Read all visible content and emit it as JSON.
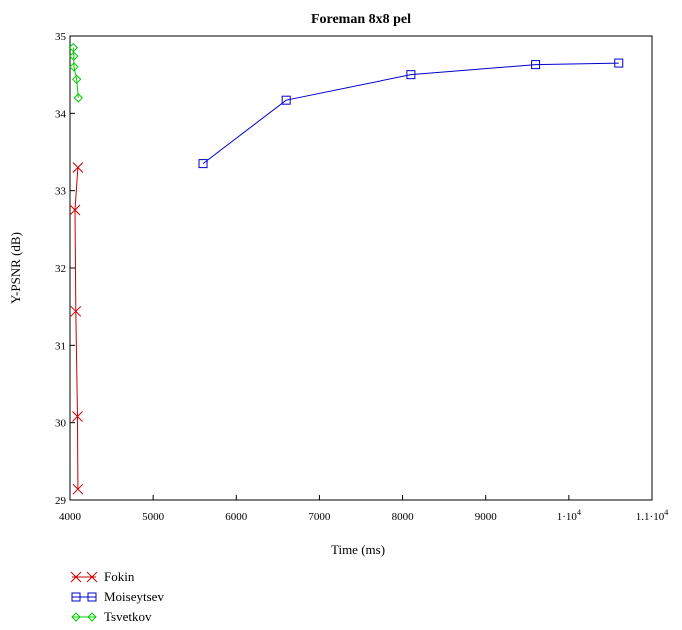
{
  "chart_data": {
    "type": "line",
    "title": "Foreman 8x8 pel",
    "xlabel": "Time (ms)",
    "ylabel": "Y-PSNR (dB)",
    "xlim": [
      4000,
      11000
    ],
    "ylim": [
      29,
      35
    ],
    "x_ticks": [
      {
        "value": 4000,
        "label": "4000",
        "exp": ""
      },
      {
        "value": 5000,
        "label": "5000",
        "exp": ""
      },
      {
        "value": 6000,
        "label": "6000",
        "exp": ""
      },
      {
        "value": 7000,
        "label": "7000",
        "exp": ""
      },
      {
        "value": 8000,
        "label": "8000",
        "exp": ""
      },
      {
        "value": 9000,
        "label": "9000",
        "exp": ""
      },
      {
        "value": 10000,
        "label": "1·10",
        "exp": "4"
      },
      {
        "value": 11000,
        "label": "1.1·10",
        "exp": "4"
      }
    ],
    "y_ticks": [
      {
        "value": 29,
        "label": "29"
      },
      {
        "value": 30,
        "label": "30"
      },
      {
        "value": 31,
        "label": "31"
      },
      {
        "value": 32,
        "label": "32"
      },
      {
        "value": 33,
        "label": "33"
      },
      {
        "value": 34,
        "label": "34"
      },
      {
        "value": 35,
        "label": "35"
      }
    ],
    "grid": false,
    "legend_position": "bottom-left",
    "series": [
      {
        "name": "Fokin",
        "color": "#cc0000",
        "marker": "x",
        "points": [
          [
            4095,
            33.3
          ],
          [
            4060,
            32.75
          ],
          [
            4070,
            31.44
          ],
          [
            4090,
            30.08
          ],
          [
            4095,
            29.14
          ]
        ]
      },
      {
        "name": "Moiseytsev",
        "color": "#0000cc",
        "marker": "square",
        "points": [
          [
            5600,
            33.35
          ],
          [
            6600,
            34.17
          ],
          [
            8100,
            34.5
          ],
          [
            9600,
            34.63
          ],
          [
            10600,
            34.65
          ]
        ]
      },
      {
        "name": "Tsvetkov",
        "color": "#00cc00",
        "marker": "diamond",
        "points": [
          [
            4040,
            34.85
          ],
          [
            4045,
            34.74
          ],
          [
            4048,
            34.6
          ],
          [
            4080,
            34.44
          ],
          [
            4100,
            34.2
          ]
        ]
      }
    ]
  }
}
